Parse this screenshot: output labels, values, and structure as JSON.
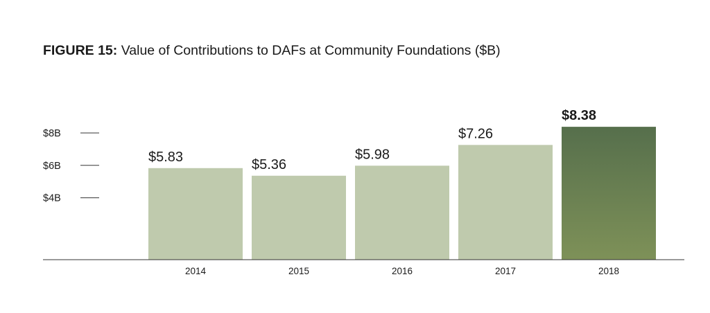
{
  "title": {
    "figure_label": "FIGURE 15:",
    "text": "Value of Contributions to DAFs at Community Foundations ($B)"
  },
  "chart_data": {
    "type": "bar",
    "categories": [
      "2014",
      "2015",
      "2016",
      "2017",
      "2018"
    ],
    "values": [
      5.83,
      5.36,
      5.98,
      7.26,
      8.38
    ],
    "data_labels": [
      "$5.83",
      "$5.36",
      "$5.98",
      "$7.26",
      "$8.38"
    ],
    "highlight_index": 4,
    "y_ticks": [
      {
        "value": 8,
        "label": "$8B"
      },
      {
        "value": 6,
        "label": "$6B"
      },
      {
        "value": 4,
        "label": "$4B"
      }
    ],
    "title": "Value of Contributions to DAFs at Community Foundations ($B)",
    "xlabel": "",
    "ylabel": "",
    "grid": false,
    "colors": {
      "bar": "#bfcaad",
      "highlight_top": "#566f4c",
      "highlight_bottom": "#7e9158",
      "axis": "#333333"
    }
  }
}
